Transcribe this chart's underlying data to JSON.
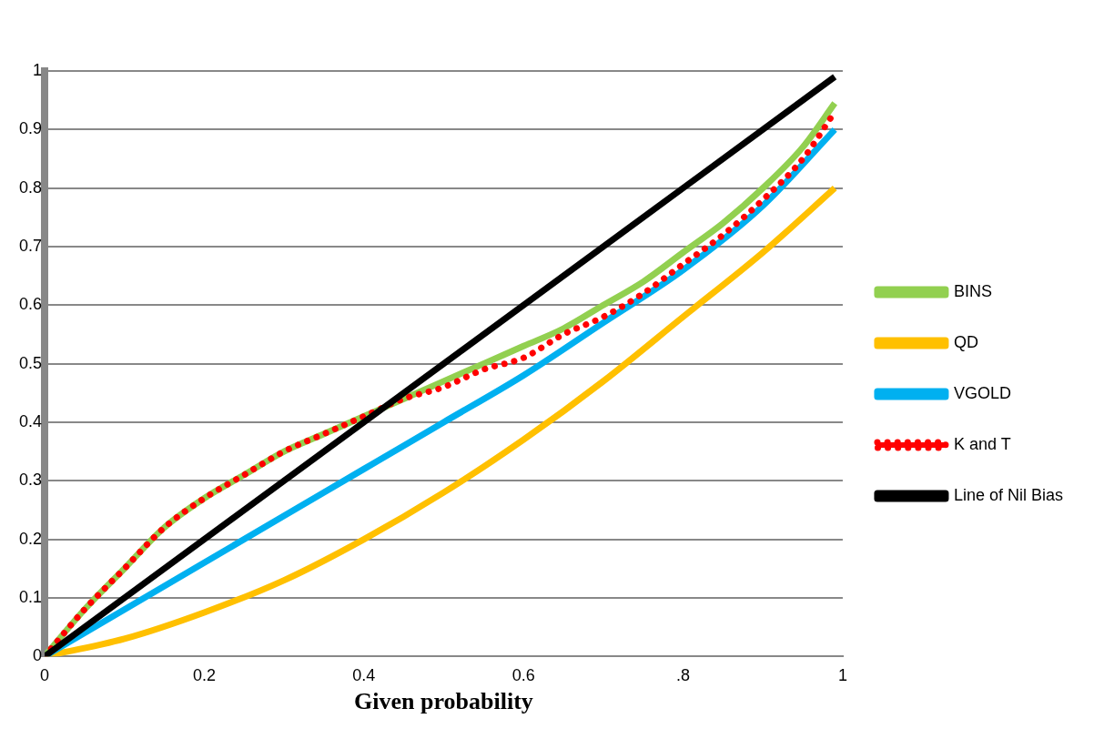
{
  "chart_data": {
    "type": "line",
    "xlabel": "Given probability",
    "xlim": [
      0,
      1
    ],
    "ylim": [
      0,
      1
    ],
    "xticks": [
      0,
      0.2,
      0.4,
      0.6,
      {
        "value": 0.8,
        "label": ".8"
      },
      1
    ],
    "yticks": [
      0,
      0.1,
      0.2,
      0.3,
      0.4,
      0.5,
      0.6,
      0.7,
      0.8,
      0.9,
      1
    ],
    "grid": "y",
    "legend": "right",
    "marker": "none",
    "series": [
      {
        "name": "BINS",
        "color": "#92d050",
        "x": [
          0,
          0.05,
          0.1,
          0.15,
          0.2,
          0.25,
          0.3,
          0.35,
          0.4,
          0.45,
          0.5,
          0.55,
          0.6,
          0.65,
          0.7,
          0.75,
          0.8,
          0.85,
          0.9,
          0.95,
          0.99
        ],
        "values": [
          0,
          0.08,
          0.15,
          0.22,
          0.27,
          0.31,
          0.35,
          0.38,
          0.41,
          0.44,
          0.47,
          0.5,
          0.53,
          0.56,
          0.6,
          0.64,
          0.69,
          0.74,
          0.8,
          0.87,
          0.945
        ]
      },
      {
        "name": "QD",
        "color": "#ffc000",
        "x": [
          0,
          0.1,
          0.2,
          0.3,
          0.4,
          0.5,
          0.6,
          0.7,
          0.8,
          0.9,
          0.99
        ],
        "values": [
          0,
          0.03,
          0.075,
          0.13,
          0.2,
          0.28,
          0.37,
          0.47,
          0.58,
          0.69,
          0.8
        ]
      },
      {
        "name": "VGOLD",
        "color": "#00b0f0",
        "x": [
          0,
          0.1,
          0.2,
          0.3,
          0.4,
          0.5,
          0.6,
          0.7,
          0.8,
          0.9,
          0.99
        ],
        "values": [
          0,
          0.08,
          0.16,
          0.24,
          0.32,
          0.4,
          0.48,
          0.57,
          0.66,
          0.77,
          0.9
        ]
      },
      {
        "name": "K and T",
        "color": "#ff0000",
        "line_style": "dotted",
        "x": [
          0,
          0.05,
          0.1,
          0.15,
          0.2,
          0.25,
          0.3,
          0.35,
          0.4,
          0.45,
          0.5,
          0.55,
          0.6,
          0.65,
          0.7,
          0.75,
          0.8,
          0.85,
          0.9,
          0.95,
          0.99
        ],
        "values": [
          0,
          0.08,
          0.15,
          0.22,
          0.27,
          0.31,
          0.35,
          0.38,
          0.41,
          0.44,
          0.46,
          0.49,
          0.51,
          0.55,
          0.58,
          0.62,
          0.67,
          0.72,
          0.78,
          0.85,
          0.93
        ]
      },
      {
        "name": "Line of Nil Bias",
        "color": "#000000",
        "x": [
          0,
          0.99
        ],
        "values": [
          0,
          0.99
        ]
      }
    ]
  }
}
